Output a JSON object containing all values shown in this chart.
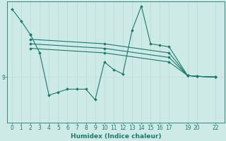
{
  "background_color": "#ceeae6",
  "line_color": "#1a7a6e",
  "grid_color_v": "#b8ddd9",
  "grid_color_h": "#c0e0dc",
  "xlabel": "Humidex (Indice chaleur)",
  "ylabel_tick": "9",
  "ytick_value": 9,
  "x_ticks": [
    0,
    1,
    2,
    3,
    4,
    5,
    6,
    7,
    8,
    9,
    10,
    11,
    12,
    13,
    14,
    15,
    16,
    17,
    19,
    20,
    22
  ],
  "x_tick_labels": [
    "0",
    "1",
    "2",
    "3",
    "4",
    "5",
    "6",
    "7",
    "8",
    "9",
    "10",
    "11",
    "12",
    "13",
    "14",
    "15",
    "16",
    "17",
    "19",
    "20",
    "22"
  ],
  "xlim": [
    -0.5,
    23.0
  ],
  "ylim_bottom": 6.0,
  "ylim_top": 14.0,
  "series": [
    {
      "x": [
        0,
        1,
        2
      ],
      "y": [
        13.5,
        12.7,
        11.8
      ]
    },
    {
      "x": [
        2,
        3,
        4,
        5,
        6,
        7,
        8,
        9,
        10,
        11,
        12,
        13,
        14,
        15,
        16,
        17,
        19,
        20,
        22
      ],
      "y": [
        11.8,
        10.6,
        7.8,
        8.0,
        8.2,
        8.2,
        8.2,
        7.5,
        10.0,
        9.5,
        9.2,
        12.1,
        13.7,
        11.2,
        11.1,
        11.0,
        9.1,
        9.05,
        9.0
      ]
    },
    {
      "x": [
        2,
        10,
        17,
        19,
        20,
        22
      ],
      "y": [
        11.5,
        11.2,
        10.6,
        9.1,
        9.05,
        9.0
      ]
    },
    {
      "x": [
        2,
        10,
        17,
        19,
        20,
        22
      ],
      "y": [
        11.2,
        10.9,
        10.3,
        9.1,
        9.05,
        9.0
      ]
    },
    {
      "x": [
        2,
        10,
        17,
        19,
        20,
        22
      ],
      "y": [
        10.9,
        10.6,
        10.0,
        9.1,
        9.05,
        9.0
      ]
    }
  ],
  "font_color": "#1a7a6e",
  "font_size_tick": 5.5,
  "font_size_label": 6.5,
  "marker": "D",
  "markersize": 1.8,
  "linewidth": 0.8
}
